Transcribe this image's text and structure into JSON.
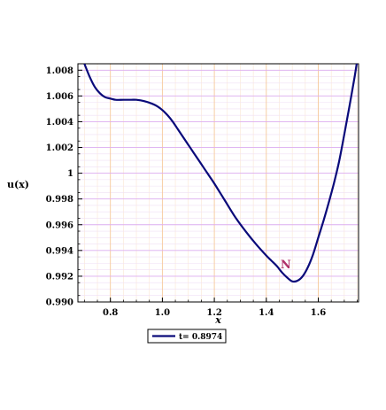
{
  "chart_data": {
    "type": "line",
    "xlabel": "x",
    "ylabel": "u(x)",
    "xlim": [
      0.675,
      1.755
    ],
    "ylim": [
      0.99,
      1.0085
    ],
    "x_ticks": [
      0.8,
      1.0,
      1.2,
      1.4,
      1.6
    ],
    "x_tick_labels": [
      "0.8",
      "1.0",
      "1.2",
      "1.4",
      "1.6"
    ],
    "y_ticks": [
      0.99,
      0.992,
      0.994,
      0.996,
      0.998,
      1.0,
      1.002,
      1.004,
      1.006,
      1.008
    ],
    "y_tick_labels": [
      "0.990",
      "0.992",
      "0.994",
      "0.996",
      "0.998",
      "1",
      "1.002",
      "1.004",
      "1.006",
      "1.008"
    ],
    "grid": true,
    "legend_position": "bottom-left",
    "annotations": [
      {
        "text": "N",
        "x": 1.475,
        "y": 0.9926
      }
    ],
    "series": [
      {
        "name": "t= 0.8974",
        "color": "#0a0a7a",
        "x": [
          0.7,
          0.72,
          0.74,
          0.76,
          0.78,
          0.8,
          0.82,
          0.85,
          0.88,
          0.9,
          0.93,
          0.96,
          0.98,
          1.0,
          1.02,
          1.04,
          1.06,
          1.08,
          1.1,
          1.12,
          1.15,
          1.18,
          1.2,
          1.24,
          1.28,
          1.32,
          1.36,
          1.4,
          1.42,
          1.44,
          1.46,
          1.48,
          1.5,
          1.52,
          1.54,
          1.56,
          1.58,
          1.6,
          1.62,
          1.64,
          1.66,
          1.68,
          1.7,
          1.72,
          1.74,
          1.75
        ],
        "y": [
          1.0085,
          1.0075,
          1.0067,
          1.0062,
          1.0059,
          1.0058,
          1.0057,
          1.0057,
          1.0057,
          1.0057,
          1.0056,
          1.0054,
          1.0052,
          1.0049,
          1.0045,
          1.004,
          1.0034,
          1.0028,
          1.0022,
          1.0016,
          1.0007,
          0.9998,
          0.9992,
          0.9979,
          0.9966,
          0.9955,
          0.9945,
          0.9936,
          0.9932,
          0.9928,
          0.9923,
          0.9919,
          0.9916,
          0.99165,
          0.992,
          0.9927,
          0.9937,
          0.995,
          0.9963,
          0.9977,
          0.9992,
          1.0009,
          1.003,
          1.0052,
          1.0075,
          1.0088
        ]
      }
    ]
  }
}
